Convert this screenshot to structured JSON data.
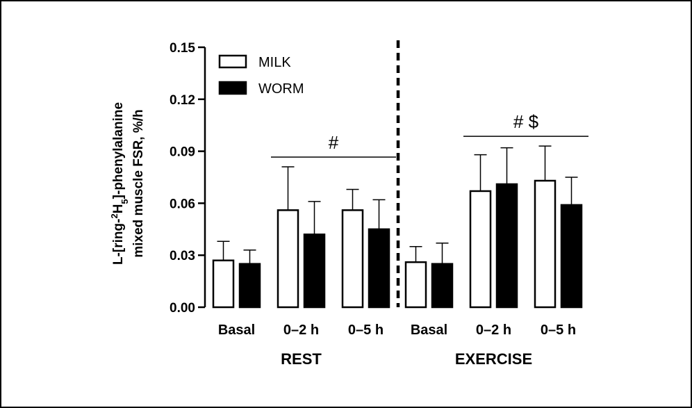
{
  "chart_data": {
    "type": "bar",
    "ylabel_line1": "L-[ring-",
    "ylabel_sup1": "2",
    "ylabel_mid": "H",
    "ylabel_sub": "5",
    "ylabel_rest": "]-phenylalanine",
    "ylabel_line2": "mixed muscle FSR, %/h",
    "ylim": [
      0,
      0.15
    ],
    "yticks": [
      "0.00",
      "0.03",
      "0.06",
      "0.09",
      "0.12",
      "0.15"
    ],
    "grid": false,
    "legend_position": "top-left",
    "groups": [
      {
        "label": "REST",
        "categories": [
          "Basal",
          "0–2 h",
          "0–5 h"
        ],
        "significance": {
          "label": "#",
          "spans": [
            "0–2 h",
            "0–5 h"
          ]
        }
      },
      {
        "label": "EXERCISE",
        "categories": [
          "Basal",
          "0–2 h",
          "0–5 h"
        ],
        "significance": {
          "label": "# $",
          "spans": [
            "0–2 h",
            "0–5 h"
          ]
        }
      }
    ],
    "series": [
      {
        "name": "MILK",
        "color": "#ffffff",
        "values": [
          0.027,
          0.056,
          0.056,
          0.026,
          0.067,
          0.073
        ],
        "errors": [
          0.011,
          0.025,
          0.012,
          0.009,
          0.021,
          0.02
        ]
      },
      {
        "name": "WORM",
        "color": "#000000",
        "values": [
          0.025,
          0.042,
          0.045,
          0.025,
          0.071,
          0.059
        ],
        "errors": [
          0.008,
          0.019,
          0.017,
          0.012,
          0.021,
          0.016
        ]
      }
    ]
  }
}
